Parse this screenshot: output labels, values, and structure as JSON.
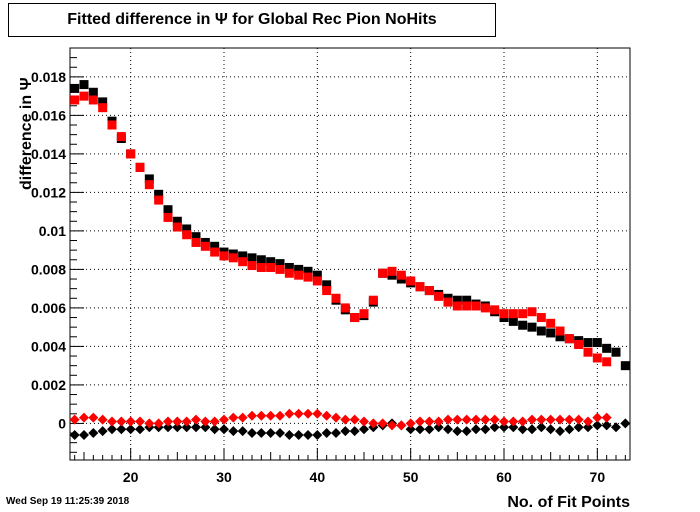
{
  "title": "Fitted difference in  Ψ  for Global Rec Pion NoHits",
  "timestamp": "Wed Sep 19 11:25:39 2018",
  "chart_data": {
    "type": "scatter",
    "title": "Fitted difference in  Ψ  for Global Rec Pion NoHits",
    "xlabel": "No. of Fit Points",
    "ylabel": "difference in Ψ",
    "xlim": [
      13.5,
      73.5
    ],
    "ylim": [
      -0.0019,
      0.0195
    ],
    "x_ticks": [
      "20",
      "30",
      "40",
      "50",
      "60",
      "70"
    ],
    "y_ticks": [
      "0",
      "0.002",
      "0.004",
      "0.006",
      "0.008",
      "0.01",
      "0.012",
      "0.014",
      "0.016",
      "0.018"
    ],
    "grid": true,
    "series": [
      {
        "marker": "square",
        "color": "#000000",
        "x": [
          14,
          15,
          16,
          17,
          18,
          19,
          20,
          21,
          22,
          23,
          24,
          25,
          26,
          27,
          28,
          29,
          30,
          31,
          32,
          33,
          34,
          35,
          36,
          37,
          38,
          39,
          40,
          41,
          42,
          43,
          44,
          45,
          46,
          47,
          48,
          49,
          50,
          51,
          52,
          53,
          54,
          55,
          56,
          57,
          58,
          59,
          60,
          61,
          62,
          63,
          64,
          65,
          66,
          67,
          68,
          69,
          70,
          71,
          72,
          73
        ],
        "y": [
          0.0174,
          0.0176,
          0.0172,
          0.0167,
          0.0157,
          0.0148,
          0.014,
          0.0133,
          0.0127,
          0.0119,
          0.0111,
          0.0105,
          0.0101,
          0.0097,
          0.0094,
          0.0092,
          0.0089,
          0.0088,
          0.0087,
          0.0086,
          0.0085,
          0.0084,
          0.0083,
          0.0081,
          0.008,
          0.0079,
          0.0077,
          0.0072,
          0.0064,
          0.0059,
          0.0055,
          0.0056,
          0.0063,
          0.0078,
          0.0077,
          0.0075,
          0.0073,
          0.0071,
          0.0069,
          0.0067,
          0.0065,
          0.0064,
          0.0064,
          0.0062,
          0.0061,
          0.0058,
          0.0055,
          0.0053,
          0.0051,
          0.005,
          0.0048,
          0.0047,
          0.0045,
          0.0044,
          0.0043,
          0.0042,
          0.0042,
          0.0039,
          0.0037,
          0.003
        ]
      },
      {
        "marker": "square",
        "color": "#ff0000",
        "x": [
          14,
          15,
          16,
          17,
          18,
          19,
          20,
          21,
          22,
          23,
          24,
          25,
          26,
          27,
          28,
          29,
          30,
          31,
          32,
          33,
          34,
          35,
          36,
          37,
          38,
          39,
          40,
          41,
          42,
          43,
          44,
          45,
          46,
          47,
          48,
          49,
          50,
          51,
          52,
          53,
          54,
          55,
          56,
          57,
          58,
          59,
          60,
          61,
          62,
          63,
          64,
          65,
          66,
          67,
          68,
          69,
          70,
          71
        ],
        "y": [
          0.0168,
          0.017,
          0.0168,
          0.0164,
          0.0155,
          0.0149,
          0.014,
          0.0133,
          0.0124,
          0.0116,
          0.0107,
          0.0102,
          0.0098,
          0.0094,
          0.0092,
          0.0089,
          0.0087,
          0.0086,
          0.0084,
          0.0082,
          0.0081,
          0.0081,
          0.008,
          0.0078,
          0.0077,
          0.0076,
          0.0074,
          0.0069,
          0.0065,
          0.006,
          0.0055,
          0.0057,
          0.0064,
          0.0078,
          0.0079,
          0.0077,
          0.0074,
          0.0071,
          0.0069,
          0.0066,
          0.0063,
          0.0061,
          0.0061,
          0.0061,
          0.006,
          0.0059,
          0.0057,
          0.0057,
          0.0057,
          0.0058,
          0.0055,
          0.0052,
          0.0048,
          0.0044,
          0.0041,
          0.0037,
          0.0034,
          0.0032
        ]
      },
      {
        "marker": "diamond",
        "color": "#000000",
        "x": [
          14,
          15,
          16,
          17,
          18,
          19,
          20,
          21,
          22,
          23,
          24,
          25,
          26,
          27,
          28,
          29,
          30,
          31,
          32,
          33,
          34,
          35,
          36,
          37,
          38,
          39,
          40,
          41,
          42,
          43,
          44,
          45,
          46,
          47,
          48,
          49,
          50,
          51,
          52,
          53,
          54,
          55,
          56,
          57,
          58,
          59,
          60,
          61,
          62,
          63,
          64,
          65,
          66,
          67,
          68,
          69,
          70,
          71,
          72,
          73
        ],
        "y": [
          -0.0006,
          -0.0006,
          -0.0005,
          -0.0004,
          -0.0003,
          -0.0003,
          -0.0003,
          -0.0003,
          -0.0002,
          -0.0002,
          -0.0002,
          -0.0002,
          -0.0002,
          -0.0002,
          -0.0002,
          -0.0003,
          -0.0003,
          -0.0004,
          -0.0004,
          -0.0005,
          -0.0005,
          -0.0005,
          -0.0005,
          -0.0006,
          -0.0006,
          -0.0006,
          -0.0006,
          -0.0005,
          -0.0005,
          -0.0004,
          -0.0004,
          -0.0003,
          -0.0002,
          -0.0001,
          0.0,
          -0.0001,
          -0.0003,
          -0.0003,
          -0.0003,
          -0.0002,
          -0.0003,
          -0.0004,
          -0.0004,
          -0.0003,
          -0.0003,
          -0.0002,
          -0.0002,
          -0.0002,
          -0.0003,
          -0.0003,
          -0.0002,
          -0.0003,
          -0.0004,
          -0.0003,
          -0.0002,
          -0.0002,
          -0.0001,
          -0.0001,
          -0.0002,
          0.0
        ]
      },
      {
        "marker": "diamond",
        "color": "#ff0000",
        "x": [
          14,
          15,
          16,
          17,
          18,
          19,
          20,
          21,
          22,
          23,
          24,
          25,
          26,
          27,
          28,
          29,
          30,
          31,
          32,
          33,
          34,
          35,
          36,
          37,
          38,
          39,
          40,
          41,
          42,
          43,
          44,
          45,
          46,
          47,
          48,
          49,
          50,
          51,
          52,
          53,
          54,
          55,
          56,
          57,
          58,
          59,
          60,
          61,
          62,
          63,
          64,
          65,
          66,
          67,
          68,
          69,
          70,
          71
        ],
        "y": [
          0.0002,
          0.0003,
          0.0003,
          0.0002,
          0.0001,
          0.0001,
          0.0001,
          0.0001,
          0.0,
          0.0,
          0.0001,
          0.0001,
          0.0001,
          0.0002,
          0.0001,
          0.0001,
          0.0002,
          0.0003,
          0.0003,
          0.0004,
          0.0004,
          0.0004,
          0.0004,
          0.0005,
          0.0005,
          0.0005,
          0.0005,
          0.0004,
          0.0003,
          0.0002,
          0.0002,
          0.0001,
          0.0,
          0.0,
          -0.0001,
          -0.0001,
          0.0,
          0.0001,
          0.0001,
          0.0001,
          0.0002,
          0.0002,
          0.0002,
          0.0002,
          0.0002,
          0.0002,
          0.0001,
          0.0001,
          0.0001,
          0.0002,
          0.0002,
          0.0002,
          0.0002,
          0.0002,
          0.0002,
          0.0001,
          0.0003,
          0.0003
        ]
      }
    ]
  }
}
